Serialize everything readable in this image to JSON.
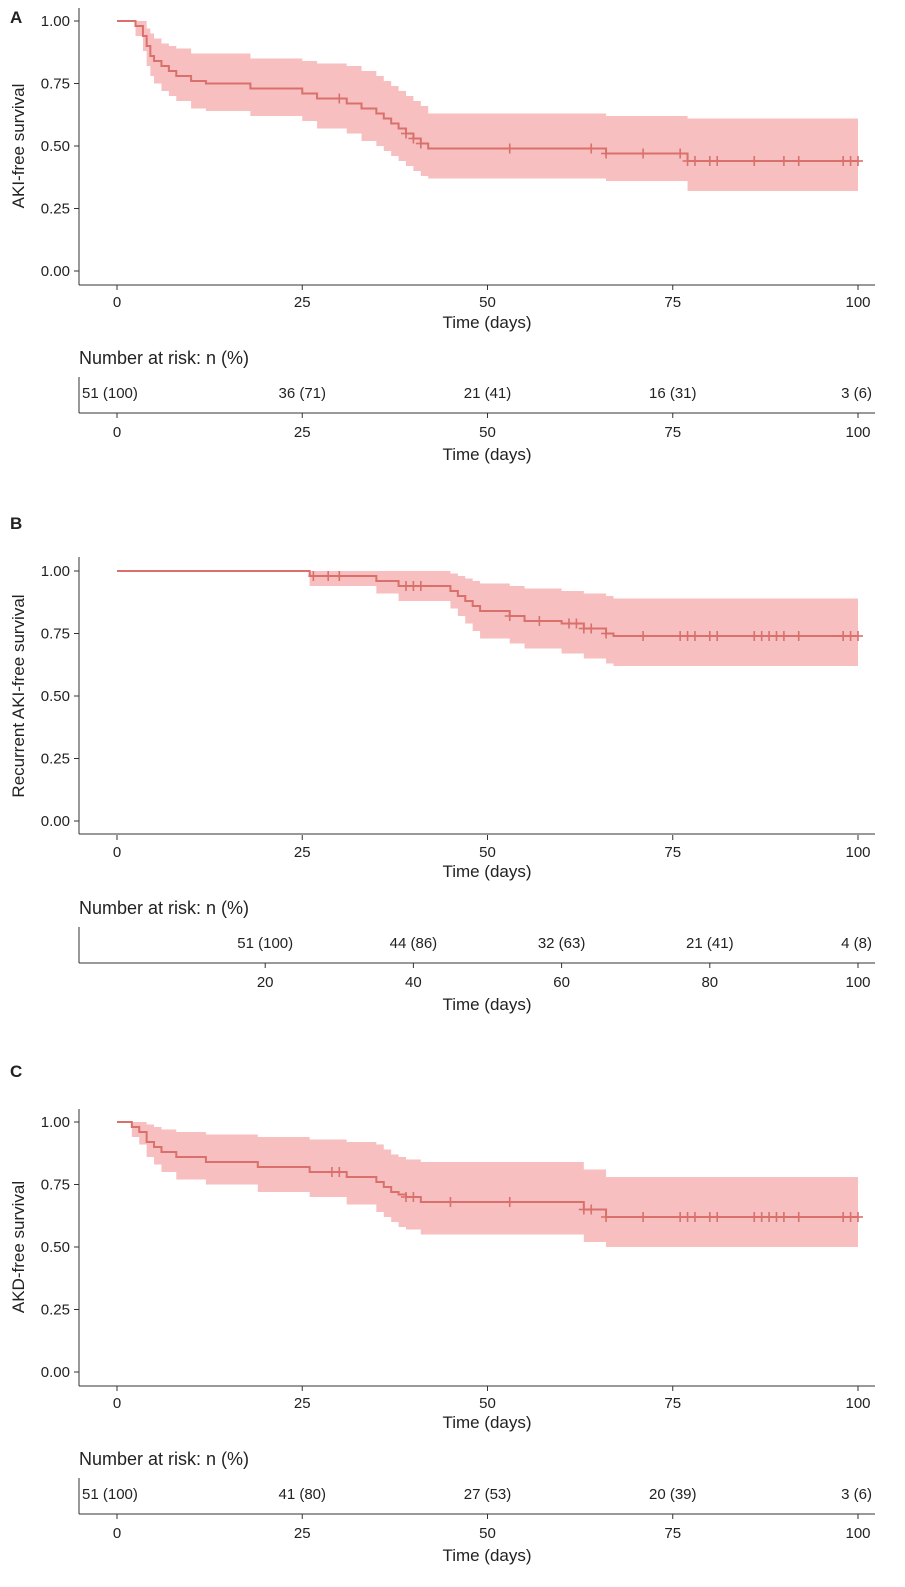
{
  "chart_data": [
    {
      "type": "line",
      "panel_label": "A",
      "ylabel": "AKI-free survival",
      "xlabel": "Time (days)",
      "xlim": [
        0,
        100
      ],
      "ylim": [
        0,
        1
      ],
      "x_ticks": [
        "0",
        "25",
        "50",
        "75",
        "100"
      ],
      "y_ticks": [
        "0.00",
        "0.25",
        "0.50",
        "0.75",
        "1.00"
      ],
      "line_color": "#d9706b",
      "band_color": "#f7bfbf",
      "series": [
        {
          "x": [
            0,
            2.5,
            3.5,
            4,
            4.5,
            5,
            6,
            7,
            8,
            10,
            12,
            18,
            25,
            27,
            31,
            33,
            35,
            36,
            37,
            38,
            39,
            40,
            41,
            42,
            66,
            77,
            100
          ],
          "y": [
            1,
            0.98,
            0.94,
            0.9,
            0.86,
            0.84,
            0.82,
            0.8,
            0.78,
            0.76,
            0.75,
            0.73,
            0.71,
            0.69,
            0.67,
            0.65,
            0.63,
            0.61,
            0.59,
            0.57,
            0.55,
            0.53,
            0.51,
            0.49,
            0.47,
            0.44,
            0.44
          ],
          "lower": [
            1,
            0.94,
            0.88,
            0.82,
            0.78,
            0.75,
            0.72,
            0.7,
            0.68,
            0.65,
            0.64,
            0.62,
            0.6,
            0.57,
            0.55,
            0.52,
            0.5,
            0.48,
            0.46,
            0.44,
            0.42,
            0.4,
            0.38,
            0.37,
            0.36,
            0.32,
            0.32
          ],
          "upper": [
            1,
            1,
            1,
            0.97,
            0.95,
            0.93,
            0.91,
            0.9,
            0.89,
            0.87,
            0.87,
            0.85,
            0.84,
            0.83,
            0.82,
            0.8,
            0.78,
            0.76,
            0.74,
            0.72,
            0.7,
            0.68,
            0.66,
            0.63,
            0.62,
            0.61,
            0.61
          ],
          "censor_x": [
            30,
            39,
            40,
            41,
            53,
            64,
            66,
            71,
            76,
            77,
            78,
            80,
            81,
            86,
            90,
            92,
            98,
            99,
            100
          ]
        }
      ],
      "risk_table": {
        "title": "Number at risk: n (%)",
        "xlabel": "Time (days)",
        "xlim": [
          0,
          100
        ],
        "ticks": [
          "0",
          "25",
          "50",
          "75",
          "100"
        ],
        "values": [
          "51 (100)",
          "36 (71)",
          "21 (41)",
          "16 (31)",
          "3 (6)"
        ]
      }
    },
    {
      "type": "line",
      "panel_label": "B",
      "ylabel": "Recurrent AKI-free survival",
      "xlabel": "Time (days)",
      "xlim": [
        0,
        100
      ],
      "ylim": [
        0,
        1
      ],
      "x_ticks": [
        "0",
        "25",
        "50",
        "75",
        "100"
      ],
      "y_ticks": [
        "0.00",
        "0.25",
        "0.50",
        "0.75",
        "1.00"
      ],
      "line_color": "#d9706b",
      "band_color": "#f7bfbf",
      "series": [
        {
          "x": [
            0,
            26,
            35,
            38,
            42,
            45,
            46,
            47,
            48,
            49,
            50,
            53,
            55,
            60,
            63,
            66,
            67,
            100
          ],
          "y": [
            1,
            0.98,
            0.96,
            0.94,
            0.94,
            0.92,
            0.9,
            0.88,
            0.86,
            0.84,
            0.84,
            0.82,
            0.8,
            0.79,
            0.77,
            0.75,
            0.74,
            0.74
          ],
          "lower": [
            1,
            0.94,
            0.91,
            0.88,
            0.88,
            0.85,
            0.82,
            0.79,
            0.76,
            0.73,
            0.73,
            0.71,
            0.69,
            0.67,
            0.65,
            0.63,
            0.62,
            0.62
          ],
          "upper": [
            1,
            1,
            1,
            1,
            1,
            0.99,
            0.98,
            0.97,
            0.96,
            0.95,
            0.95,
            0.94,
            0.93,
            0.92,
            0.91,
            0.9,
            0.89,
            0.89
          ],
          "censor_x": [
            26.5,
            28.5,
            30,
            39,
            40,
            41,
            53,
            57,
            61,
            62,
            63,
            64,
            66,
            71,
            76,
            77,
            78,
            80,
            81,
            86,
            87,
            88,
            89,
            90,
            92,
            98,
            99,
            100
          ]
        }
      ],
      "risk_table": {
        "title": "Number at risk: n (%)",
        "xlabel": "Time (days)",
        "xlim": [
          0,
          100
        ],
        "ticks": [
          "20",
          "40",
          "60",
          "80",
          "100"
        ],
        "tick_values": [
          20,
          40,
          60,
          80,
          100
        ],
        "values": [
          "51 (100)",
          "44 (86)",
          "32 (63)",
          "21 (41)",
          "4 (8)"
        ]
      }
    },
    {
      "type": "line",
      "panel_label": "C",
      "ylabel": "AKD-free survival",
      "xlabel": "Time (days)",
      "xlim": [
        0,
        100
      ],
      "ylim": [
        0,
        1
      ],
      "x_ticks": [
        "0",
        "25",
        "50",
        "75",
        "100"
      ],
      "y_ticks": [
        "0.00",
        "0.25",
        "0.50",
        "0.75",
        "1.00"
      ],
      "line_color": "#d9706b",
      "band_color": "#f7bfbf",
      "series": [
        {
          "x": [
            0,
            2,
            3,
            4,
            5,
            6,
            8,
            12,
            19,
            26,
            31,
            35,
            36,
            37,
            38,
            39,
            41,
            63,
            66,
            100
          ],
          "y": [
            1,
            0.98,
            0.96,
            0.92,
            0.9,
            0.88,
            0.86,
            0.84,
            0.82,
            0.8,
            0.78,
            0.76,
            0.74,
            0.72,
            0.71,
            0.7,
            0.68,
            0.65,
            0.62,
            0.62
          ],
          "lower": [
            1,
            0.94,
            0.91,
            0.86,
            0.83,
            0.8,
            0.77,
            0.75,
            0.72,
            0.7,
            0.67,
            0.64,
            0.62,
            0.6,
            0.58,
            0.57,
            0.55,
            0.52,
            0.5,
            0.5
          ],
          "upper": [
            1,
            1,
            1,
            0.99,
            0.98,
            0.97,
            0.96,
            0.95,
            0.94,
            0.93,
            0.92,
            0.91,
            0.89,
            0.87,
            0.86,
            0.85,
            0.84,
            0.81,
            0.78,
            0.78
          ],
          "censor_x": [
            29,
            30,
            39,
            40,
            45,
            53,
            63,
            64,
            66,
            71,
            76,
            77,
            78,
            80,
            81,
            86,
            87,
            88,
            89,
            90,
            92,
            98,
            99,
            100
          ]
        }
      ],
      "risk_table": {
        "title": "Number at risk: n (%)",
        "xlabel": "Time (days)",
        "xlim": [
          0,
          100
        ],
        "ticks": [
          "0",
          "25",
          "50",
          "75",
          "100"
        ],
        "values": [
          "51 (100)",
          "41 (80)",
          "27 (53)",
          "20 (39)",
          "3 (6)"
        ]
      }
    }
  ]
}
